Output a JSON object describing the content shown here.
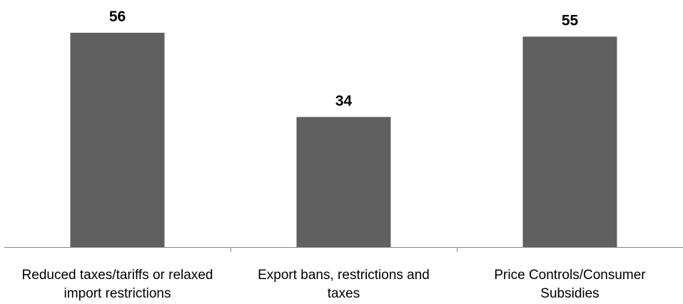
{
  "chart_data": {
    "type": "bar",
    "categories": [
      [
        "Reduced taxes/tariffs or relaxed",
        "import restrictions"
      ],
      [
        "Export bans, restrictions and",
        "taxes"
      ],
      [
        "Price Controls/Consumer",
        "Subsidies"
      ]
    ],
    "values": [
      56,
      34,
      55
    ],
    "data_labels": [
      "56",
      "34",
      "55"
    ],
    "ylim": [
      0,
      56
    ],
    "grid": false,
    "legend": "none",
    "bar_color": "#606060",
    "axis_color": "#888888",
    "text_color": "#000000"
  }
}
